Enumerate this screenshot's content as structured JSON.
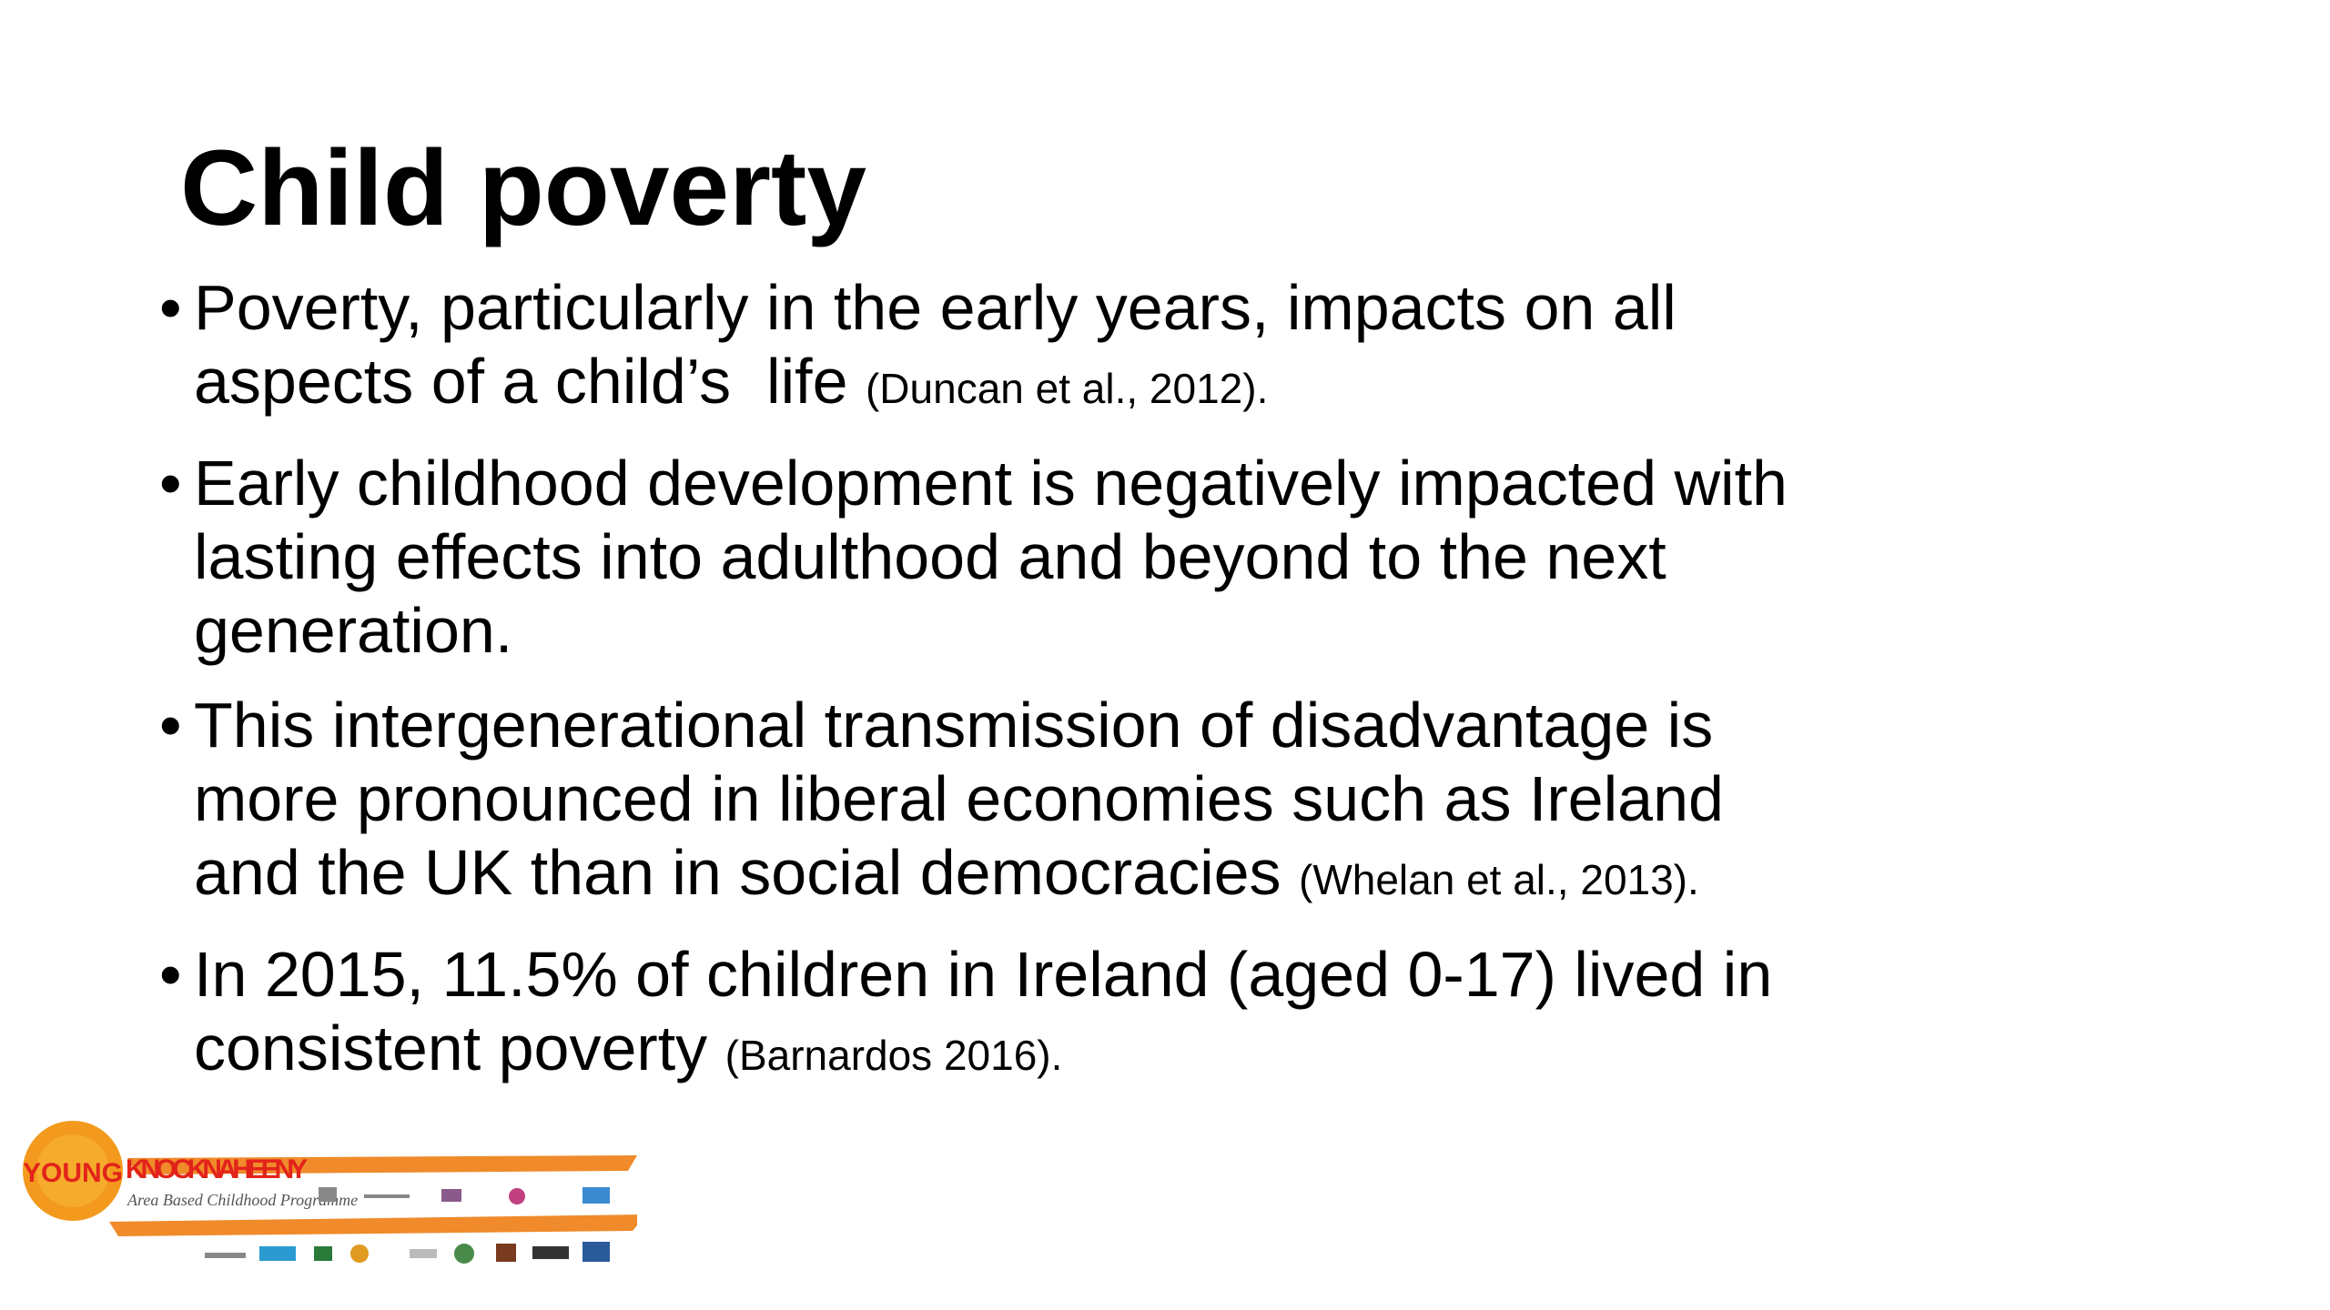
{
  "title": "Child poverty",
  "bullets": [
    {
      "lines": [
        "Poverty, particularly in the early years, impacts on all",
        "aspects of a child’s  life"
      ],
      "citation": "(Duncan et al., 2012)."
    },
    {
      "lines": [
        "Early childhood development is negatively impacted with",
        "lasting effects into adulthood and beyond to the next",
        "generation."
      ],
      "citation": null
    },
    {
      "lines": [
        "This intergenerational transmission of disadvantage is",
        "more pronounced in liberal economies such as Ireland",
        "and the UK than in social democracies"
      ],
      "citation": "(Whelan et al., 2013)."
    },
    {
      "lines": [
        "In 2015, 11.5% of children in Ireland (aged 0-17) lived in",
        "consistent poverty"
      ],
      "citation": "(Barnardos 2016)."
    }
  ],
  "logo": {
    "young": "YOUNG",
    "name": "KNOCKNAHEENY",
    "tagline": "Area Based Childhood Programme"
  }
}
